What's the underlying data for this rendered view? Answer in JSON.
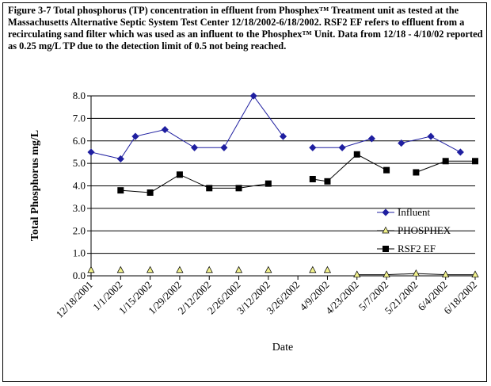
{
  "caption": "Figure 3-7 Total phosphorus (TP) concentration in effluent from Phosphex™ Treatment unit as tested at the Massachusetts Alternative Septic System Test Center 12/18/2002-6/18/2002. RSF2 EF refers to effluent from a recirculating sand filter which was used as an influent to the Phosphex™ Unit. Data from 12/18 - 4/10/02 reported as 0.25 mg/L TP due to the detection limit of 0.5 not being reached.",
  "chart_data": {
    "type": "line",
    "xlabel": "Date",
    "ylabel": "Total Phosphorus mg/L",
    "ylim": [
      0,
      8
    ],
    "yticks": [
      "0.0",
      "1.0",
      "2.0",
      "3.0",
      "4.0",
      "5.0",
      "6.0",
      "7.0",
      "8.0"
    ],
    "x_tick_labels": [
      "12/18/2001",
      "1/1/2002",
      "1/15/2002",
      "1/29/2002",
      "2/12/2002",
      "2/26/2002",
      "3/12/2002",
      "3/26/2002",
      "4/9/2002",
      "4/23/2002",
      "5/7/2002",
      "5/21/2002",
      "6/4/2002",
      "6/18/2002"
    ],
    "x_range": [
      "2001-12-18",
      "2002-06-18"
    ],
    "grid": "horizontal",
    "legend_position": "right",
    "series": [
      {
        "name": "Influent",
        "color": "#1f1fa0",
        "marker": "diamond",
        "segments": [
          [
            [
              "2001-12-18",
              5.5
            ],
            [
              "2002-01-01",
              5.2
            ],
            [
              "2002-01-08",
              6.2
            ],
            [
              "2002-01-22",
              6.5
            ],
            [
              "2002-02-05",
              5.7
            ],
            [
              "2002-02-19",
              5.7
            ],
            [
              "2002-03-05",
              8.0
            ],
            [
              "2002-03-19",
              6.2
            ]
          ],
          [
            [
              "2002-04-02",
              5.7
            ],
            [
              "2002-04-16",
              5.7
            ],
            [
              "2002-04-30",
              6.1
            ]
          ],
          [
            [
              "2002-05-14",
              5.9
            ],
            [
              "2002-05-28",
              6.2
            ],
            [
              "2002-06-11",
              5.5
            ]
          ]
        ]
      },
      {
        "name": "PHOSPHEX",
        "color": "#000000",
        "fill": "#f2f28c",
        "marker": "triangle",
        "segments": [
          [
            [
              "2001-12-18",
              0.25
            ]
          ],
          [
            [
              "2002-01-01",
              0.25
            ]
          ],
          [
            [
              "2002-01-15",
              0.25
            ]
          ],
          [
            [
              "2002-01-29",
              0.25
            ]
          ],
          [
            [
              "2002-02-12",
              0.25
            ]
          ],
          [
            [
              "2002-02-26",
              0.25
            ]
          ],
          [
            [
              "2002-03-12",
              0.25
            ]
          ],
          [
            [
              "2002-04-02",
              0.25
            ]
          ],
          [
            [
              "2002-04-09",
              0.25
            ]
          ],
          [
            [
              "2002-04-23",
              0.05
            ],
            [
              "2002-05-07",
              0.05
            ],
            [
              "2002-05-21",
              0.1
            ],
            [
              "2002-06-04",
              0.05
            ],
            [
              "2002-06-18",
              0.05
            ]
          ]
        ]
      },
      {
        "name": "RSF2 EF",
        "color": "#000000",
        "marker": "square",
        "segments": [
          [
            [
              "2002-01-01",
              3.8
            ],
            [
              "2002-01-15",
              3.7
            ],
            [
              "2002-01-29",
              4.5
            ],
            [
              "2002-02-12",
              3.9
            ],
            [
              "2002-02-26",
              3.9
            ],
            [
              "2002-03-12",
              4.1
            ]
          ],
          [
            [
              "2002-04-02",
              4.3
            ],
            [
              "2002-04-09",
              4.2
            ],
            [
              "2002-04-23",
              5.4
            ],
            [
              "2002-05-07",
              4.7
            ]
          ],
          [
            [
              "2002-05-21",
              4.6
            ],
            [
              "2002-06-04",
              5.1
            ],
            [
              "2002-06-18",
              5.1
            ]
          ]
        ]
      }
    ]
  }
}
